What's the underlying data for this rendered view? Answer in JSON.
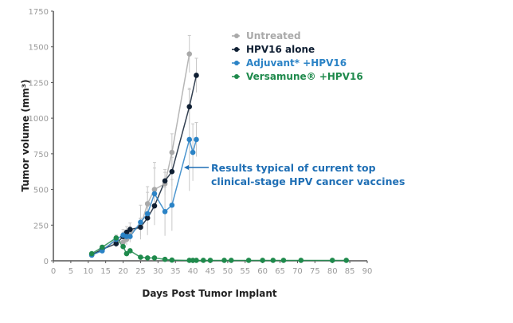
{
  "chart_data": {
    "type": "line",
    "title": "",
    "xlabel": "Days Post Tumor Implant",
    "ylabel": "Tumor volume (mm³)",
    "xlim": [
      0,
      90
    ],
    "ylim": [
      0,
      1750
    ],
    "xticks": [
      "0",
      "5",
      "10",
      "15",
      "20",
      "25",
      "30",
      "35",
      "40",
      "45",
      "50",
      "55",
      "60",
      "65",
      "70",
      "75",
      "80",
      "85",
      "90"
    ],
    "yticks": [
      "0",
      "250",
      "500",
      "750",
      "1000",
      "1250",
      "1500",
      "1750"
    ],
    "grid": false,
    "legend_position": "top-right",
    "series": [
      {
        "name": "Untreated",
        "color": "#a9a9a9",
        "x": [
          11,
          14,
          18,
          20,
          21,
          22,
          25,
          27,
          29,
          32,
          34,
          39
        ],
        "y": [
          45,
          80,
          140,
          130,
          150,
          200,
          240,
          400,
          500,
          540,
          760,
          1450
        ],
        "err": [
          10,
          15,
          30,
          30,
          40,
          40,
          60,
          120,
          150,
          80,
          130,
          130
        ]
      },
      {
        "name": "HPV16 alone",
        "color": "#0f1f33",
        "x": [
          11,
          14,
          18,
          20,
          21,
          22,
          25,
          27,
          29,
          32,
          34,
          39,
          41
        ],
        "y": [
          40,
          80,
          120,
          170,
          200,
          220,
          235,
          300,
          385,
          560,
          625,
          1080,
          1300
        ],
        "err": [
          10,
          15,
          25,
          30,
          40,
          45,
          60,
          80,
          100,
          80,
          100,
          120,
          120
        ]
      },
      {
        "name": "Adjuvant* +HPV16",
        "color": "#2b83c6",
        "x": [
          11,
          14,
          18,
          20,
          21,
          22,
          25,
          27,
          29,
          32,
          34,
          39,
          40,
          41
        ],
        "y": [
          40,
          70,
          150,
          180,
          170,
          170,
          270,
          330,
          470,
          345,
          390,
          850,
          760,
          850
        ],
        "err": [
          10,
          15,
          30,
          40,
          40,
          40,
          120,
          150,
          220,
          170,
          180,
          360,
          200,
          120
        ]
      },
      {
        "name": "Versamune® +HPV16",
        "color": "#1f8a4c",
        "x": [
          11,
          14,
          18,
          20,
          21,
          22,
          25,
          27,
          29,
          32,
          34,
          39,
          40,
          41,
          43,
          45,
          49,
          51,
          56,
          60,
          63,
          66,
          71,
          80,
          84
        ],
        "y": [
          50,
          95,
          160,
          100,
          50,
          70,
          25,
          20,
          20,
          10,
          5,
          3,
          3,
          3,
          3,
          3,
          3,
          3,
          3,
          3,
          3,
          3,
          3,
          3,
          3
        ],
        "err": [
          10,
          15,
          20,
          20,
          15,
          15,
          10,
          8,
          8,
          5,
          3,
          2,
          2,
          2,
          2,
          2,
          2,
          2,
          2,
          2,
          2,
          2,
          2,
          2,
          2
        ]
      }
    ],
    "annotation": {
      "line1": "Results typical of current top",
      "line2": "clinical-stage HPV cancer vaccines"
    }
  }
}
